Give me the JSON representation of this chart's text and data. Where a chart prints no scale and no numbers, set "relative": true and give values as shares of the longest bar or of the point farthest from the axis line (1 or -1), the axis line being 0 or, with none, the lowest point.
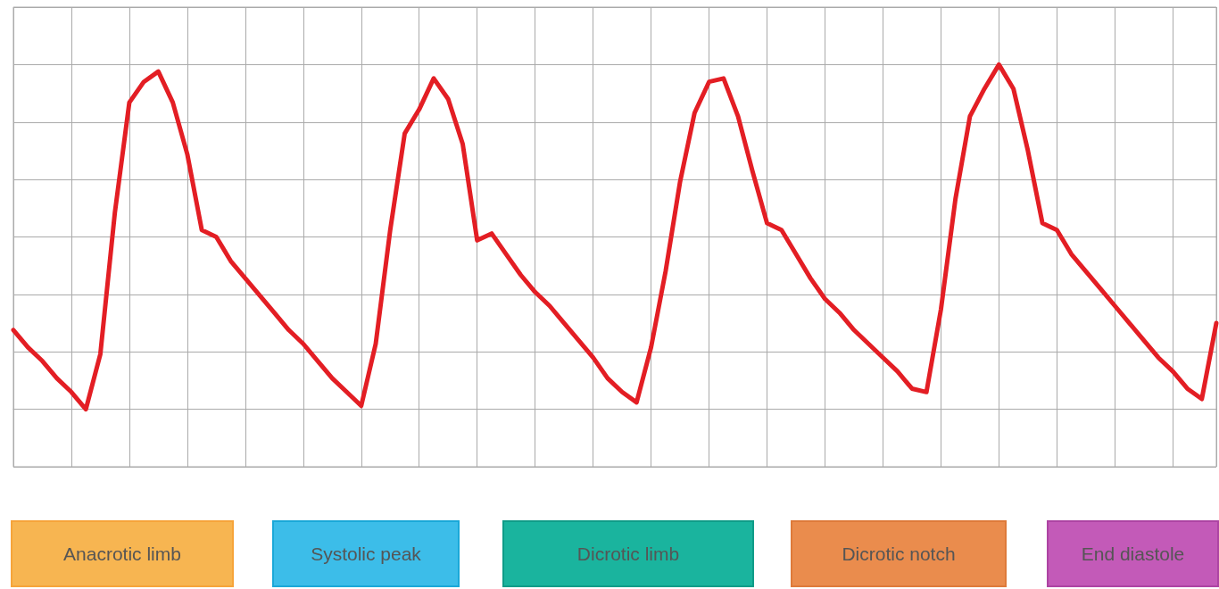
{
  "chart_data": {
    "type": "line",
    "categories": [
      null,
      null,
      null,
      null,
      null,
      null,
      null,
      null,
      null,
      null,
      null,
      null,
      null,
      null,
      null,
      null,
      null,
      null,
      null,
      null,
      null,
      null,
      null,
      null,
      null,
      null,
      null,
      null,
      null,
      null,
      null,
      null,
      null,
      null,
      null,
      null,
      null,
      null,
      null,
      null,
      null,
      null,
      null,
      null,
      null,
      null,
      null,
      null,
      null,
      null,
      null,
      null,
      null,
      null,
      null,
      null,
      null,
      null,
      null,
      null,
      null,
      null,
      null,
      null,
      null,
      null,
      null,
      null,
      null,
      null,
      null,
      null,
      null,
      null,
      null,
      null,
      null,
      null,
      null,
      null,
      null,
      null,
      null,
      null
    ],
    "values": [
      0.23,
      0.18,
      0.14,
      0.09,
      0.05,
      0,
      0.16,
      0.57,
      0.89,
      0.95,
      0.98,
      0.89,
      0.74,
      0.52,
      0.5,
      0.43,
      0.38,
      0.33,
      0.28,
      0.23,
      0.19,
      0.14,
      0.09,
      0.05,
      0.01,
      0.19,
      0.52,
      0.8,
      0.87,
      0.96,
      0.9,
      0.77,
      0.49,
      0.51,
      0.45,
      0.39,
      0.34,
      0.3,
      0.25,
      0.2,
      0.15,
      0.09,
      0.05,
      0.02,
      0.18,
      0.4,
      0.66,
      0.86,
      0.95,
      0.96,
      0.85,
      0.69,
      0.54,
      0.52,
      0.45,
      0.38,
      0.32,
      0.28,
      0.23,
      0.19,
      0.15,
      0.11,
      0.06,
      0.05,
      0.29,
      0.61,
      0.85,
      0.93,
      1,
      0.93,
      0.75,
      0.54,
      0.52,
      0.45,
      0.4,
      0.35,
      0.3,
      0.25,
      0.2,
      0.15,
      0.11,
      0.06,
      0.03,
      0.25
    ],
    "color": "#e31e24",
    "relative": true,
    "grid": true,
    "marker": "none",
    "line_style": "solid",
    "annotations": [
      "Anacrotic limb",
      "Systolic peak",
      "Dicrotic limb",
      "Dicrotic notch",
      "End diastole"
    ]
  }
}
